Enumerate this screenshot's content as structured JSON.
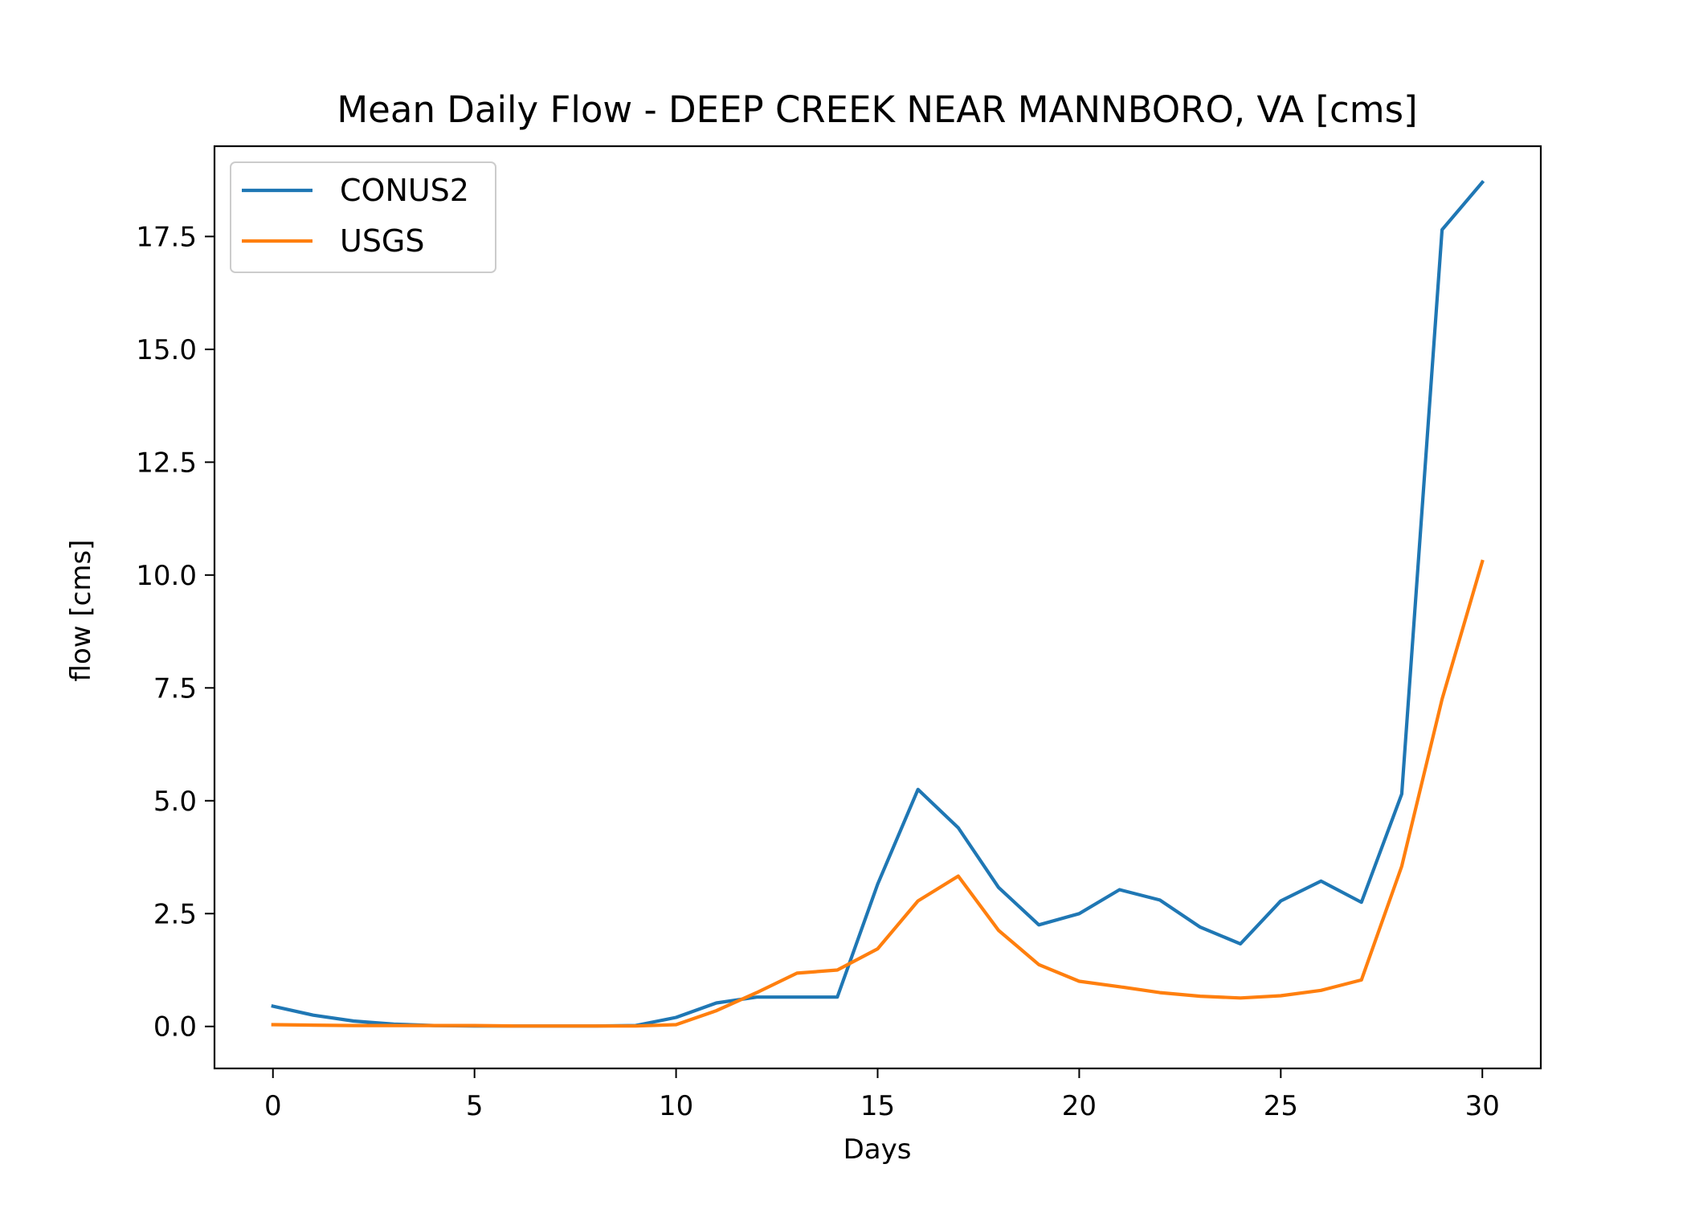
{
  "chart_data": {
    "type": "line",
    "title": "Mean Daily Flow - DEEP CREEK NEAR MANNBORO, VA [cms]",
    "xlabel": "Days",
    "ylabel": "flow [cms]",
    "xlim": [
      -1.45,
      31.45
    ],
    "ylim": [
      -0.93,
      19.5
    ],
    "xticks": [
      0,
      5,
      10,
      15,
      20,
      25,
      30
    ],
    "xtick_labels": [
      "0",
      "5",
      "10",
      "15",
      "20",
      "25",
      "30"
    ],
    "yticks": [
      0,
      2.5,
      5,
      7.5,
      10,
      12.5,
      15,
      17.5
    ],
    "ytick_labels": [
      "0.0",
      "2.5",
      "5.0",
      "7.5",
      "10.0",
      "12.5",
      "15.0",
      "17.5"
    ],
    "grid": false,
    "legend": "upper-left",
    "x": [
      0,
      1,
      2,
      3,
      4,
      5,
      6,
      7,
      8,
      9,
      10,
      11,
      12,
      13,
      14,
      15,
      16,
      17,
      18,
      19,
      20,
      21,
      22,
      23,
      24,
      25,
      26,
      27,
      28,
      29,
      30
    ],
    "series": [
      {
        "name": "CONUS2",
        "color": "#1f77b4",
        "values": [
          0.45,
          0.25,
          0.12,
          0.05,
          0.02,
          0.01,
          0.01,
          0.01,
          0.01,
          0.02,
          0.2,
          0.52,
          0.65,
          0.65,
          0.65,
          3.15,
          5.25,
          4.4,
          3.08,
          2.25,
          2.5,
          3.03,
          2.8,
          2.2,
          1.83,
          2.78,
          3.22,
          2.75,
          5.15,
          17.65,
          18.7
        ]
      },
      {
        "name": "USGS",
        "color": "#ff7f0e",
        "values": [
          0.04,
          0.03,
          0.02,
          0.02,
          0.02,
          0.02,
          0.01,
          0.01,
          0.01,
          0.01,
          0.04,
          0.35,
          0.75,
          1.18,
          1.25,
          1.72,
          2.78,
          3.33,
          2.13,
          1.37,
          1.0,
          0.88,
          0.75,
          0.67,
          0.63,
          0.68,
          0.8,
          1.03,
          3.55,
          7.25,
          10.3
        ]
      }
    ]
  }
}
